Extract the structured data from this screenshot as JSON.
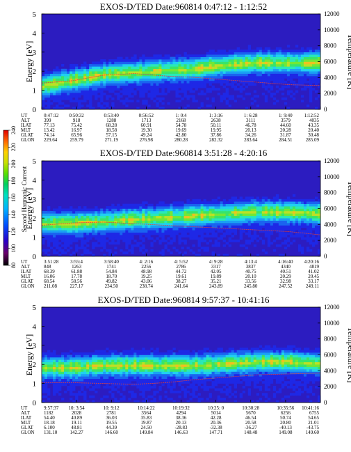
{
  "figure": {
    "colorbar": {
      "label": "Second Harmonic Current",
      "ticks": [
        "240",
        "220",
        "200",
        "180",
        "160",
        "140",
        "120",
        "100",
        "80"
      ],
      "range": [
        80,
        240
      ],
      "colors": [
        "#000000",
        "#6a006a",
        "#2a00c8",
        "#0050ff",
        "#00b4ff",
        "#00e0c0",
        "#00d060",
        "#5ae000",
        "#c8e000",
        "#ffd000",
        "#ff6400",
        "#e00000"
      ]
    }
  },
  "chart_data": [
    {
      "type": "heatmap",
      "title": "EXOS-D/TED   Date:960814  0:47:12 - 1:12:52",
      "ylabel": "Energy [eV]",
      "y2label": "Temperature [K]",
      "ylim": [
        0,
        5
      ],
      "y_ticks": [
        "0",
        "1",
        "2",
        "3",
        "4",
        "5"
      ],
      "y2lim": [
        0,
        12000
      ],
      "y2_ticks": [
        "0",
        "2000",
        "4000",
        "6000",
        "8000",
        "10000",
        "12000"
      ],
      "row_labels": [
        "UT",
        "ALT",
        "ILAT",
        "MLT",
        "GLAT",
        "GLON"
      ],
      "columns": [
        [
          "0:47:12",
          "399",
          "77.13",
          "13.42",
          "74.14",
          "229.64"
        ],
        [
          "0:50:32",
          "918",
          "75.42",
          "16.97",
          "65.96",
          "259.79"
        ],
        [
          "0:53:40",
          "1288",
          "68.28",
          "18.58",
          "57.15",
          "271.19"
        ],
        [
          "0:56:52",
          "1713",
          "60.91",
          "19.30",
          "49.24",
          "276.98"
        ],
        [
          "1: 0:4",
          "2168",
          "54.78",
          "19.69",
          "42.80",
          "280.28"
        ],
        [
          "1: 3:16",
          "2638",
          "50.11",
          "19.95",
          "37.86",
          "282.32"
        ],
        [
          "1: 6:28",
          "3111",
          "46.78",
          "20.13",
          "34.26",
          "283.64"
        ],
        [
          "1: 9:40",
          "3579",
          "44.60",
          "20.28",
          "31.87",
          "284.51"
        ],
        [
          "1:12:52",
          "4035",
          "43.35",
          "20.40",
          "30.48",
          "285.09"
        ]
      ],
      "temperature_line_K": [
        3300,
        3600,
        4300,
        4500,
        4200,
        4000,
        3700,
        3400,
        3100,
        3000
      ],
      "band_center_eV": [
        1.3,
        1.6,
        1.9,
        2.0,
        2.1,
        2.2,
        2.4,
        2.5,
        2.5,
        2.5
      ]
    },
    {
      "type": "heatmap",
      "title": "EXOS-D/TED   Date:960814  3:51:28 - 4:20:16",
      "ylabel": "Energy [eV]",
      "y2label": "Temperature [K]",
      "ylim": [
        0,
        5
      ],
      "y_ticks": [
        "0",
        "1",
        "2",
        "3",
        "4",
        "5"
      ],
      "y2lim": [
        0,
        12000
      ],
      "y2_ticks": [
        "0",
        "2000",
        "4000",
        "6000",
        "8000",
        "10000",
        "12000"
      ],
      "row_labels": [
        "UT",
        "ALT",
        "ILAT",
        "MLT",
        "GLAT",
        "GLON"
      ],
      "columns": [
        [
          "3:51:28",
          "848",
          "68.39",
          "16.06",
          "68.54",
          "211.08"
        ],
        [
          "3:55:4",
          "1263",
          "61.88",
          "17.78",
          "58.56",
          "227.17"
        ],
        [
          "3:58:40",
          "1741",
          "54.84",
          "18.70",
          "49.82",
          "234.50"
        ],
        [
          "4: 2:16",
          "2256",
          "48.98",
          "19.25",
          "43.06",
          "238.74"
        ],
        [
          "4: 5:52",
          "2786",
          "44.72",
          "19.61",
          "38.27",
          "241.64"
        ],
        [
          "4: 9:28",
          "3317",
          "42.05",
          "19.89",
          "35.21",
          "243.89"
        ],
        [
          "4:13:4",
          "3837",
          "40.75",
          "20.10",
          "33.56",
          "245.80"
        ],
        [
          "4:16:40",
          "4340",
          "40.51",
          "20.29",
          "32.98",
          "247.52"
        ],
        [
          "4:20:16",
          "4819",
          "41.02",
          "20.45",
          "33.17",
          "249.11"
        ]
      ],
      "temperature_line_K": [
        3900,
        4200,
        4300,
        4100,
        3900,
        3700,
        3500,
        3300,
        3100,
        2700
      ],
      "band_center_eV": [
        1.8,
        1.8,
        1.9,
        2.0,
        2.1,
        2.2,
        2.3,
        2.4,
        2.4,
        2.3
      ]
    },
    {
      "type": "heatmap",
      "title": "EXOS-D/TED   Date:960814  9:57:37 - 10:41:16",
      "ylabel": "Energy [eV]",
      "y2label": "Temperature [K]",
      "ylim": [
        0,
        5
      ],
      "y_ticks": [
        "0",
        "1",
        "2",
        "3",
        "4",
        "5"
      ],
      "y2lim": [
        0,
        12000
      ],
      "y2_ticks": [
        "0",
        "2000",
        "4000",
        "6000",
        "8000",
        "10000",
        "12000"
      ],
      "row_labels": [
        "UT",
        "ALT",
        "ILAT",
        "MLT",
        "GLAT",
        "GLON"
      ],
      "columns": [
        [
          "9:57:37",
          "1182",
          "54.40",
          "18.18",
          "6.100",
          "131.10"
        ],
        [
          "10: 3:54",
          "2028",
          "40.89",
          "19.11",
          "48.81",
          "142.27"
        ],
        [
          "10: 9:12",
          "2781",
          "36.03",
          "19.55",
          "44.39",
          "146.60"
        ],
        [
          "10:14:22",
          "3564",
          "35.83",
          "19.87",
          "24.50",
          "149.84"
        ],
        [
          "10:19:32",
          "4294",
          "38.36",
          "20.13",
          "-28.83",
          "146.63"
        ],
        [
          "10:25: 0",
          "5014",
          "42.28",
          "20.36",
          "-32.38",
          "147.71"
        ],
        [
          "10:30:28",
          "5670",
          "46.54",
          "20.58",
          "-36.27",
          "148.48"
        ],
        [
          "10:35:56",
          "6256",
          "50.74",
          "20.80",
          "-40.13",
          "149.08"
        ],
        [
          "10:41:16",
          "6755",
          "54.65",
          "21.01",
          "-43.75",
          "149.60"
        ]
      ],
      "temperature_line_K": [
        2500,
        2500,
        2400,
        2300,
        2500,
        2900,
        3200,
        3500,
        3600,
        3700
      ],
      "band_center_eV": [
        1.9,
        1.9,
        2.0,
        2.0,
        2.0,
        2.0,
        2.1,
        2.2,
        2.2,
        2.1
      ]
    }
  ]
}
